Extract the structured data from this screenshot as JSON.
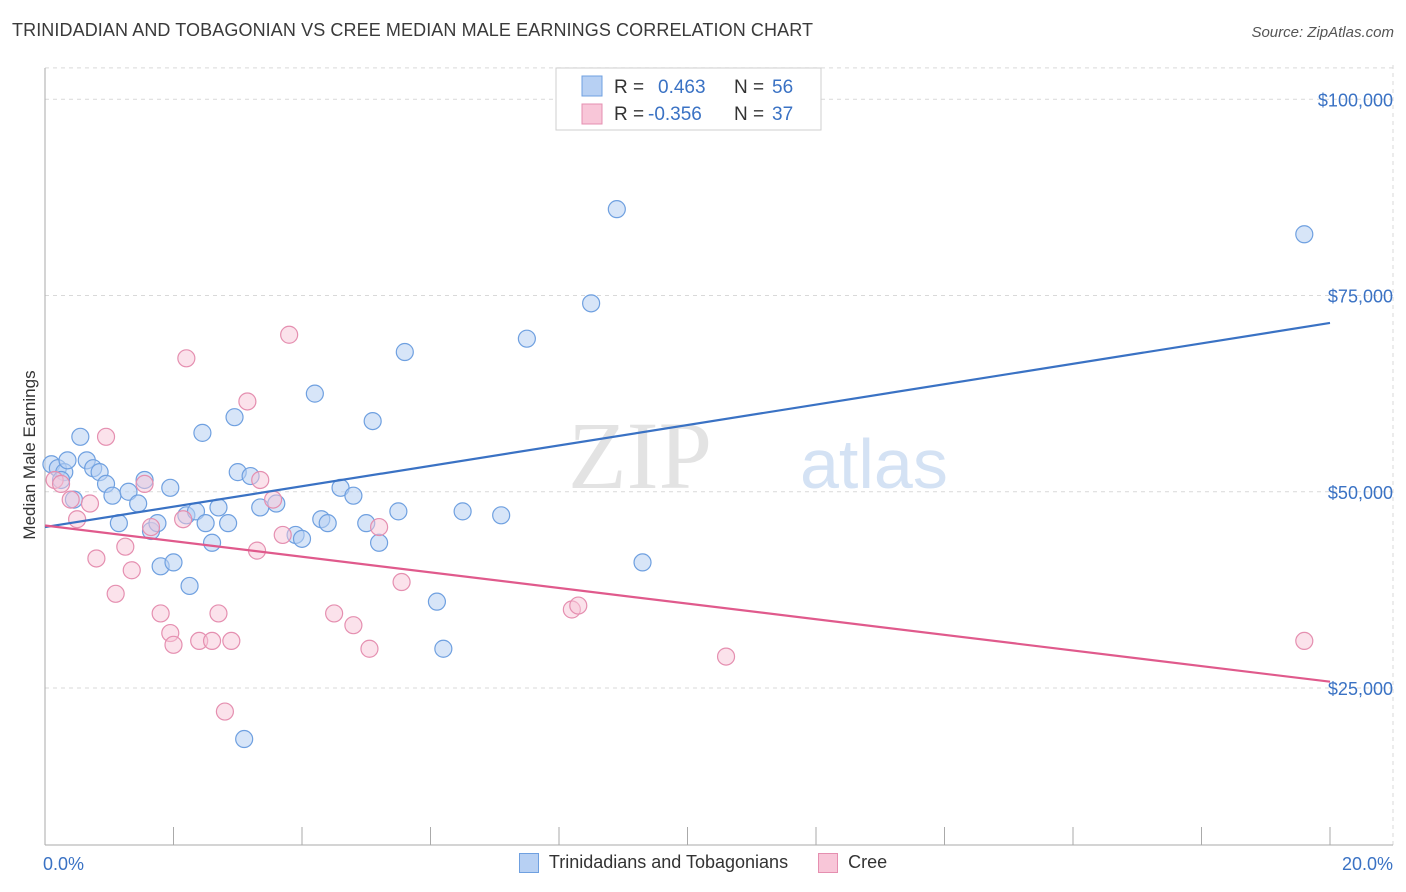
{
  "title": "TRINIDADIAN AND TOBAGONIAN VS CREE MEDIAN MALE EARNINGS CORRELATION CHART",
  "source": "Source: ZipAtlas.com",
  "watermark": "ZIPatlas",
  "legend": {
    "rows": [
      {
        "r_label": "R =",
        "r_value": "0.463",
        "n_label": "N =",
        "n_value": "56",
        "color": "#6fa0e0",
        "fill": "#b7d0f3"
      },
      {
        "r_label": "R =",
        "r_value": "-0.356",
        "n_label": "N =",
        "n_value": "37",
        "color": "#e58fb0",
        "fill": "#f8c6d8"
      }
    ]
  },
  "bottom_legend": {
    "series_a": "Trinidadians and Tobagonians",
    "series_b": "Cree"
  },
  "colors": {
    "blue": "#3a72c4",
    "blue_point": "#8fb6ea",
    "pink": "#e05a8c",
    "pink_point": "#f0a8c2",
    "grid": "#d9d9d9"
  },
  "chart_data": {
    "type": "scatter",
    "title": "TRINIDADIAN AND TOBAGONIAN VS CREE MEDIAN MALE EARNINGS CORRELATION CHART",
    "xlabel": "",
    "ylabel": "Median Male Earnings",
    "xlim": [
      0,
      20
    ],
    "ylim": [
      5000,
      105000
    ],
    "x_tick_labels": [
      "0.0%",
      "20.0%"
    ],
    "y_ticks": [
      25000,
      50000,
      75000,
      100000
    ],
    "y_tick_labels": [
      "$25,000",
      "$50,000",
      "$75,000",
      "$100,000"
    ],
    "grid": true,
    "legend_position": "top-center",
    "series": [
      {
        "name": "Trinidadians and Tobagonians",
        "color": "#3a72c4",
        "trend": {
          "x": [
            0,
            20
          ],
          "y": [
            45500,
            71500
          ]
        },
        "points": [
          [
            0.1,
            53500
          ],
          [
            0.2,
            53000
          ],
          [
            0.3,
            52500
          ],
          [
            0.35,
            54000
          ],
          [
            0.45,
            49000
          ],
          [
            0.55,
            57000
          ],
          [
            0.65,
            54000
          ],
          [
            0.75,
            53000
          ],
          [
            0.85,
            52500
          ],
          [
            0.95,
            51000
          ],
          [
            1.05,
            49500
          ],
          [
            1.15,
            46000
          ],
          [
            1.3,
            50000
          ],
          [
            1.45,
            48500
          ],
          [
            1.55,
            51500
          ],
          [
            1.65,
            45000
          ],
          [
            1.75,
            46000
          ],
          [
            1.8,
            40500
          ],
          [
            1.95,
            50500
          ],
          [
            2.0,
            41000
          ],
          [
            2.2,
            47000
          ],
          [
            2.25,
            38000
          ],
          [
            2.35,
            47500
          ],
          [
            2.45,
            57500
          ],
          [
            2.5,
            46000
          ],
          [
            2.6,
            43500
          ],
          [
            2.7,
            48000
          ],
          [
            2.85,
            46000
          ],
          [
            2.95,
            59500
          ],
          [
            3.0,
            52500
          ],
          [
            3.1,
            18500
          ],
          [
            3.2,
            52000
          ],
          [
            3.35,
            48000
          ],
          [
            3.6,
            48500
          ],
          [
            3.9,
            44500
          ],
          [
            4.0,
            44000
          ],
          [
            4.2,
            62500
          ],
          [
            4.3,
            46500
          ],
          [
            4.4,
            46000
          ],
          [
            4.6,
            50500
          ],
          [
            4.8,
            49500
          ],
          [
            5.0,
            46000
          ],
          [
            5.1,
            59000
          ],
          [
            5.2,
            43500
          ],
          [
            5.5,
            47500
          ],
          [
            5.6,
            67800
          ],
          [
            6.1,
            36000
          ],
          [
            6.2,
            30000
          ],
          [
            6.5,
            47500
          ],
          [
            7.1,
            47000
          ],
          [
            7.5,
            69500
          ],
          [
            8.5,
            74000
          ],
          [
            8.9,
            86000
          ],
          [
            9.3,
            41000
          ],
          [
            19.6,
            82800
          ],
          [
            0.25,
            51500
          ]
        ]
      },
      {
        "name": "Cree",
        "color": "#e05a8c",
        "trend": {
          "x": [
            0,
            20
          ],
          "y": [
            45700,
            25800
          ]
        },
        "points": [
          [
            0.15,
            51500
          ],
          [
            0.25,
            51000
          ],
          [
            0.4,
            49000
          ],
          [
            0.5,
            46500
          ],
          [
            0.7,
            48500
          ],
          [
            0.8,
            41500
          ],
          [
            0.95,
            57000
          ],
          [
            1.1,
            37000
          ],
          [
            1.25,
            43000
          ],
          [
            1.35,
            40000
          ],
          [
            1.55,
            51000
          ],
          [
            1.65,
            45500
          ],
          [
            1.8,
            34500
          ],
          [
            1.95,
            32000
          ],
          [
            2.0,
            30500
          ],
          [
            2.15,
            46500
          ],
          [
            2.2,
            67000
          ],
          [
            2.4,
            31000
          ],
          [
            2.6,
            31000
          ],
          [
            2.7,
            34500
          ],
          [
            2.8,
            22000
          ],
          [
            2.9,
            31000
          ],
          [
            3.15,
            61500
          ],
          [
            3.3,
            42500
          ],
          [
            3.35,
            51500
          ],
          [
            3.55,
            49000
          ],
          [
            3.7,
            44500
          ],
          [
            3.8,
            70000
          ],
          [
            4.5,
            34500
          ],
          [
            4.8,
            33000
          ],
          [
            5.05,
            30000
          ],
          [
            5.2,
            45500
          ],
          [
            5.55,
            38500
          ],
          [
            8.2,
            35000
          ],
          [
            8.3,
            35500
          ],
          [
            10.6,
            29000
          ],
          [
            19.6,
            31000
          ]
        ]
      }
    ]
  }
}
